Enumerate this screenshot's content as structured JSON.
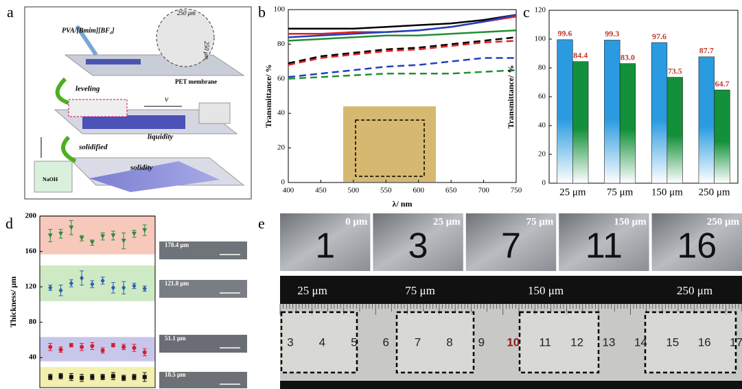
{
  "panels": {
    "a": {
      "letter": "a",
      "labels": {
        "material": "PVA/[Bmim][BF₄]",
        "width": "250 μm",
        "height": "250 μm",
        "substrate": "PET membrane",
        "step1": "leveling",
        "speed": "v",
        "state1": "liquidity",
        "step2": "solidified",
        "bath": "NaOH",
        "state2": "solidity"
      }
    },
    "b": {
      "letter": "b"
    },
    "c": {
      "letter": "c"
    },
    "d": {
      "letter": "d"
    },
    "e": {
      "letter": "e",
      "tiles": [
        {
          "thickness": "0 μm",
          "number": "1"
        },
        {
          "thickness": "25 μm",
          "number": "3"
        },
        {
          "thickness": "75 μm",
          "number": "7"
        },
        {
          "thickness": "150 μm",
          "number": "11"
        },
        {
          "thickness": "250 μm",
          "number": "16"
        }
      ],
      "ruler_labels": [
        "25 μm",
        "75 μm",
        "150 μm",
        "250 μm"
      ],
      "ruler_numbers": [
        "3",
        "4",
        "5",
        "6",
        "7",
        "8",
        "9",
        "10",
        "11",
        "12",
        "13",
        "14",
        "15",
        "16",
        "17"
      ]
    }
  },
  "chart_data": [
    {
      "type": "line",
      "ylabel": "Transmittance/ %",
      "xlabel": "λ/ nm",
      "x": [
        400,
        450,
        500,
        550,
        600,
        650,
        700,
        750
      ],
      "xlim": [
        400,
        750
      ],
      "xticks": [
        400,
        450,
        500,
        550,
        600,
        650,
        700,
        750
      ],
      "ylim": [
        0,
        100
      ],
      "yticks": [
        0,
        20,
        40,
        60,
        80,
        100
      ],
      "series": [
        {
          "color": "#000000",
          "dash": false,
          "values": [
            89,
            89,
            89,
            90,
            91,
            92,
            94,
            97
          ]
        },
        {
          "color": "#e02020",
          "dash": false,
          "values": [
            86,
            86,
            87,
            87,
            88,
            90,
            93,
            96
          ]
        },
        {
          "color": "#2040c0",
          "dash": false,
          "values": [
            84,
            85,
            86,
            87,
            88,
            90,
            93,
            97
          ]
        },
        {
          "color": "#209030",
          "dash": false,
          "values": [
            82,
            83,
            84,
            85,
            85,
            86,
            87,
            88
          ]
        },
        {
          "color": "#000000",
          "dash": true,
          "values": [
            69,
            73,
            75,
            77,
            78,
            80,
            82,
            84
          ]
        },
        {
          "color": "#e02020",
          "dash": true,
          "values": [
            68,
            72,
            74,
            76,
            77,
            79,
            81,
            82
          ]
        },
        {
          "color": "#2040c0",
          "dash": true,
          "values": [
            61,
            63,
            65,
            67,
            68,
            70,
            72,
            72
          ]
        },
        {
          "color": "#209030",
          "dash": true,
          "values": [
            60,
            61,
            62,
            63,
            63,
            63,
            64,
            65
          ]
        }
      ]
    },
    {
      "type": "bar",
      "ylabel": "Transmittance/ %",
      "categories": [
        "25 μm",
        "75 μm",
        "150 μm",
        "250 μm"
      ],
      "ylim": [
        0,
        120
      ],
      "yticks": [
        0,
        20,
        40,
        60,
        80,
        100,
        120
      ],
      "value_label_color": "#c0392b",
      "series": [
        {
          "color": "#2a9be0",
          "values": [
            99.6,
            99.3,
            97.6,
            87.7
          ],
          "value_labels": [
            "99.6",
            "99.3",
            "97.6",
            "87.7"
          ]
        },
        {
          "color": "#12903a",
          "values": [
            84.4,
            83.0,
            73.5,
            64.7
          ],
          "value_labels": [
            "84.4",
            "83.0",
            "73.5",
            "64.7"
          ]
        }
      ]
    },
    {
      "type": "scatter",
      "ylabel": "Thickness/ μm",
      "x": [
        1,
        2,
        3,
        4,
        5,
        6,
        7,
        8,
        9,
        10
      ],
      "xlim": [
        0,
        11
      ],
      "ylim": [
        6,
        200
      ],
      "yticks": [
        40,
        80,
        120,
        160,
        200
      ],
      "series": [
        {
          "color": "#2e8b3a",
          "band_color": "#f7c9bd",
          "marker": "triangle",
          "values": [
            178,
            180,
            187,
            175,
            170,
            177,
            178,
            172,
            180,
            184
          ],
          "errors": [
            7,
            5,
            8,
            3,
            3,
            4,
            5,
            9,
            4,
            6
          ]
        },
        {
          "color": "#2e5fb0",
          "band_color": "#cdeac4",
          "marker": "diamond",
          "values": [
            119,
            116,
            124,
            130,
            123,
            127,
            119,
            119,
            121,
            118
          ],
          "errors": [
            3,
            6,
            4,
            8,
            4,
            4,
            6,
            7,
            3,
            3
          ]
        },
        {
          "color": "#d02030",
          "band_color": "#c9c6ec",
          "marker": "circle",
          "values": [
            52,
            49,
            54,
            52,
            53,
            48,
            54,
            52,
            51,
            46
          ],
          "errors": [
            4,
            3,
            2,
            4,
            4,
            3,
            2,
            3,
            4,
            4
          ]
        },
        {
          "color": "#111111",
          "band_color": "#f3efb0",
          "marker": "square",
          "values": [
            18,
            19,
            18,
            17,
            18,
            18,
            19,
            17,
            18,
            18
          ],
          "errors": [
            3,
            3,
            4,
            4,
            3,
            3,
            4,
            3,
            3,
            5
          ]
        }
      ],
      "annotations": [
        "178.4 μm",
        "121.8 μm",
        "51.1 μm",
        "18.5 μm"
      ]
    }
  ]
}
